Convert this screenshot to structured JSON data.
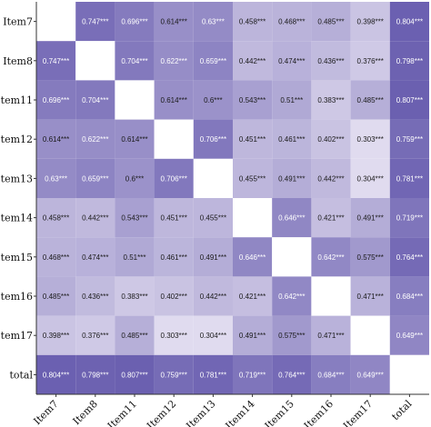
{
  "chart_data": {
    "type": "heatmap",
    "row_labels": [
      "Item7",
      "Item8",
      "Item11",
      "Item12",
      "Item13",
      "Item14",
      "Item15",
      "Item16",
      "Item17",
      "total"
    ],
    "col_labels": [
      "Item7",
      "Item8",
      "Item11",
      "Item12",
      "Item13",
      "Item14",
      "Item15",
      "Item16",
      "Item17",
      "total"
    ],
    "values": [
      [
        null,
        0.747,
        0.696,
        0.614,
        0.63,
        0.458,
        0.468,
        0.485,
        0.398,
        0.804
      ],
      [
        0.747,
        null,
        0.704,
        0.622,
        0.659,
        0.442,
        0.474,
        0.436,
        0.376,
        0.798
      ],
      [
        0.696,
        0.704,
        null,
        0.614,
        0.6,
        0.543,
        0.51,
        0.383,
        0.485,
        0.807
      ],
      [
        0.614,
        0.622,
        0.614,
        null,
        0.706,
        0.451,
        0.461,
        0.402,
        0.303,
        0.759
      ],
      [
        0.63,
        0.659,
        0.6,
        0.706,
        null,
        0.455,
        0.491,
        0.442,
        0.304,
        0.781
      ],
      [
        0.458,
        0.442,
        0.543,
        0.451,
        0.455,
        null,
        0.646,
        0.421,
        0.491,
        0.719
      ],
      [
        0.468,
        0.474,
        0.51,
        0.461,
        0.491,
        0.646,
        null,
        0.642,
        0.575,
        0.764
      ],
      [
        0.485,
        0.436,
        0.383,
        0.402,
        0.442,
        0.421,
        0.642,
        null,
        0.471,
        0.684
      ],
      [
        0.398,
        0.376,
        0.485,
        0.303,
        0.304,
        0.491,
        0.575,
        0.471,
        null,
        0.649
      ],
      [
        0.804,
        0.798,
        0.807,
        0.759,
        0.781,
        0.719,
        0.764,
        0.684,
        0.649,
        null
      ]
    ],
    "labels": [
      [
        "",
        "0.747***",
        "0.696***",
        "0.614***",
        "0.63***",
        "0.458***",
        "0.468***",
        "0.485***",
        "0.398***",
        "0.804***"
      ],
      [
        "0.747***",
        "",
        "0.704***",
        "0.622***",
        "0.659***",
        "0.442***",
        "0.474***",
        "0.436***",
        "0.376***",
        "0.798***"
      ],
      [
        "0.696***",
        "0.704***",
        "",
        "0.614***",
        "0.6***",
        "0.543***",
        "0.51***",
        "0.383***",
        "0.485***",
        "0.807***"
      ],
      [
        "0.614***",
        "0.622***",
        "0.614***",
        "",
        "0.706***",
        "0.451***",
        "0.461***",
        "0.402***",
        "0.303***",
        "0.759***"
      ],
      [
        "0.63***",
        "0.659***",
        "0.6***",
        "0.706***",
        "",
        "0.455***",
        "0.491***",
        "0.442***",
        "0.304***",
        "0.781***"
      ],
      [
        "0.458***",
        "0.442***",
        "0.543***",
        "0.451***",
        "0.455***",
        "",
        "0.646***",
        "0.421***",
        "0.491***",
        "0.719***"
      ],
      [
        "0.468***",
        "0.474***",
        "0.51***",
        "0.461***",
        "0.491***",
        "0.646***",
        "",
        "0.642***",
        "0.575***",
        "0.764***"
      ],
      [
        "0.485***",
        "0.436***",
        "0.383***",
        "0.402***",
        "0.442***",
        "0.421***",
        "0.642***",
        "",
        "0.471***",
        "0.684***"
      ],
      [
        "0.398***",
        "0.376***",
        "0.485***",
        "0.303***",
        "0.304***",
        "0.491***",
        "0.575***",
        "0.471***",
        "",
        "0.649***"
      ],
      [
        "0.804***",
        "0.798***",
        "0.807***",
        "0.759***",
        "0.781***",
        "0.719***",
        "0.764***",
        "0.684***",
        "0.649***",
        ""
      ]
    ],
    "color_scale": {
      "low": "#e1dcef",
      "high": "#6a5fb0",
      "domain": [
        0.3,
        0.81
      ],
      "diagonal": "#ffffff"
    },
    "title": "",
    "xlabel": "",
    "ylabel": "",
    "grid": false,
    "legend": "none"
  }
}
